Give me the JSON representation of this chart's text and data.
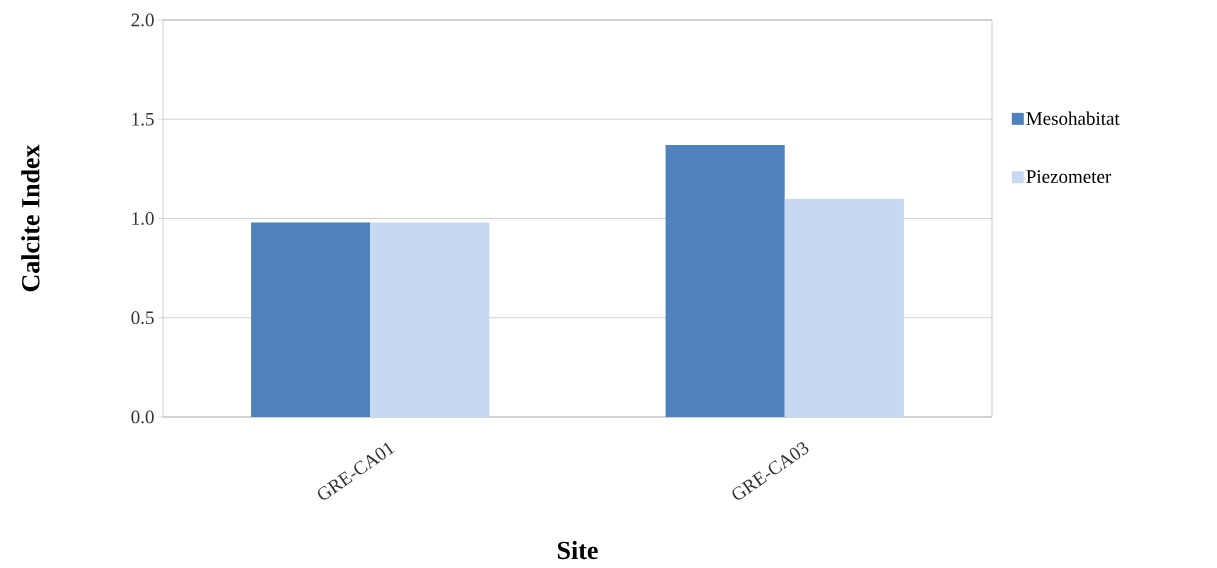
{
  "chart_data": {
    "type": "bar",
    "xlabel": "Site",
    "ylabel": "Calcite Index",
    "categories": [
      "GRE-CA01",
      "GRE-CA03"
    ],
    "series": [
      {
        "name": "Mesohabitat",
        "color": "#4f81bd",
        "values": [
          0.98,
          1.37
        ]
      },
      {
        "name": "Piezometer",
        "color": "#c6d9f0",
        "values": [
          0.98,
          1.1
        ]
      }
    ],
    "ylim": [
      0,
      2
    ],
    "yticks": [
      {
        "value": 0,
        "label": "0.0"
      },
      {
        "value": 0.5,
        "label": "0.5"
      },
      {
        "value": 1,
        "label": "1.0"
      },
      {
        "value": 1.5,
        "label": "1.5"
      },
      {
        "value": 2,
        "label": "2.0"
      }
    ],
    "grid": "y",
    "legend": "right"
  }
}
